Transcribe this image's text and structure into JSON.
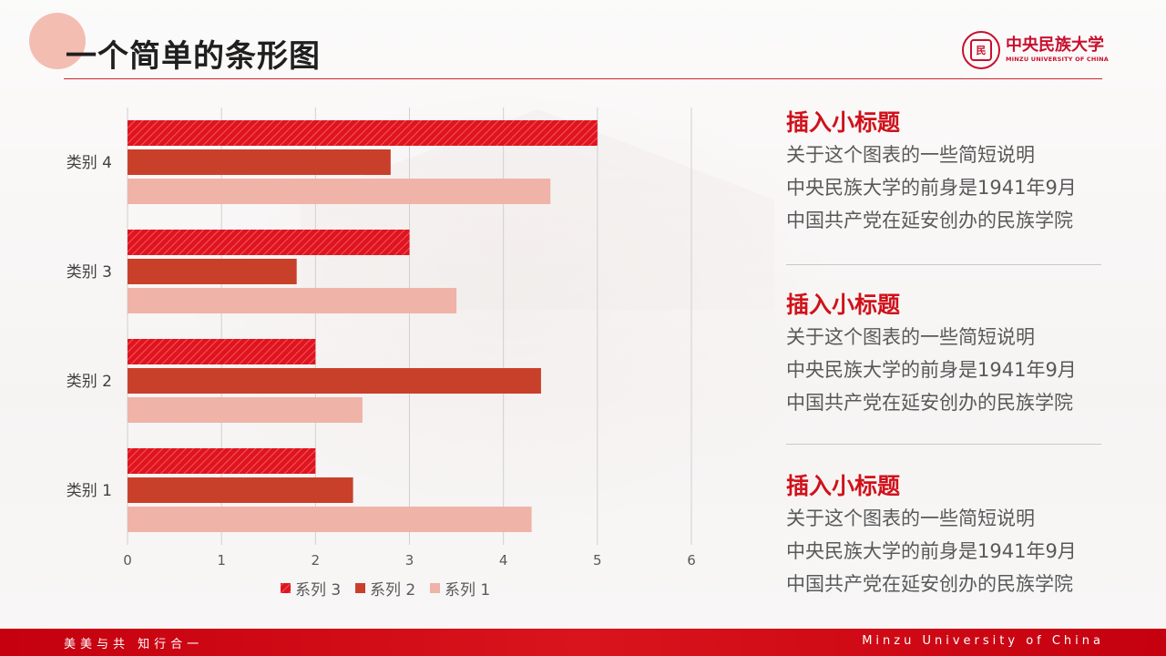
{
  "header": {
    "title": "一个简单的条形图"
  },
  "logo": {
    "seal_glyph": "民",
    "name_cn": "中央民族大学",
    "name_en": "MINZU UNIVERSITY OF CHINA"
  },
  "sidebar": {
    "blocks": [
      {
        "heading": "插入小标题",
        "lines": [
          "关于这个图表的一些简短说明",
          "中央民族大学的前身是1941年9月",
          "中国共产党在延安创办的民族学院"
        ]
      },
      {
        "heading": "插入小标题",
        "lines": [
          "关于这个图表的一些简短说明",
          "中央民族大学的前身是1941年9月",
          "中国共产党在延安创办的民族学院"
        ]
      },
      {
        "heading": "插入小标题",
        "lines": [
          "关于这个图表的一些简短说明",
          "中央民族大学的前身是1941年9月",
          "中国共产党在延安创办的民族学院"
        ]
      }
    ]
  },
  "footer": {
    "left": "美美与共 知行合一",
    "right": "Minzu University of China"
  },
  "colors": {
    "accent": "#c8102e",
    "series_3": "#e0141f",
    "series_2": "#c9402a",
    "series_1": "#efb3a8"
  },
  "chart_data": {
    "type": "bar",
    "orientation": "horizontal",
    "categories": [
      "类别 1",
      "类别 2",
      "类别 3",
      "类别 4"
    ],
    "series": [
      {
        "name": "系列 1",
        "values": [
          4.3,
          2.5,
          3.5,
          4.5
        ]
      },
      {
        "name": "系列 2",
        "values": [
          2.4,
          4.4,
          1.8,
          2.8
        ]
      },
      {
        "name": "系列 3",
        "values": [
          2.0,
          2.0,
          3.0,
          5.0
        ]
      }
    ],
    "xlim": [
      0,
      6
    ],
    "xticks": [
      0,
      1,
      2,
      3,
      4,
      5,
      6
    ],
    "grid": true,
    "legend_position": "bottom",
    "legend_order": [
      "系列 3",
      "系列 2",
      "系列 1"
    ]
  }
}
